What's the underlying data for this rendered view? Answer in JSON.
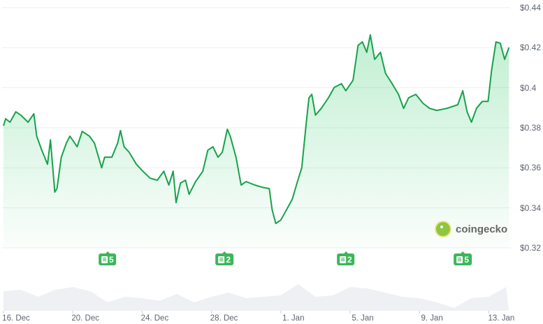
{
  "chart_data": {
    "type": "area",
    "title": "",
    "xlabel": "",
    "ylabel": "",
    "ylim": [
      0.32,
      0.44
    ],
    "y_ticks": [
      "$0.44",
      "$0.42",
      "$0.4",
      "$0.38",
      "$0.36",
      "$0.34",
      "$0.32"
    ],
    "y_tick_values": [
      0.44,
      0.42,
      0.4,
      0.38,
      0.36,
      0.34,
      0.32
    ],
    "x_ticks": [
      "16. Dec",
      "20. Dec",
      "24. Dec",
      "28. Dec",
      "1. Jan",
      "5. Jan",
      "9. Jan",
      "13. Jan"
    ],
    "x_tick_dates": [
      "16 Dec 00:00",
      "20 Dec 00:00",
      "24 Dec 00:00",
      "28 Dec 00:00",
      "1 Jan 00:00",
      "5 Jan 00:00",
      "9 Jan 00:00",
      "13 Jan 00:00"
    ],
    "grid": true,
    "line_color": "#16a34a",
    "fill_color": "#22c55e",
    "series": [
      {
        "x": [
          "16 Dec 00:00",
          "16 Dec 03:00",
          "16 Dec 09:00",
          "16 Dec 17:00",
          "17 Dec 00:00",
          "17 Dec 10:00",
          "17 Dec 18:00",
          "17 Dec 22:00",
          "18 Dec 05:00",
          "18 Dec 13:00",
          "18 Dec 17:00",
          "18 Dec 23:00",
          "19 Dec 02:00",
          "19 Dec 08:00",
          "19 Dec 15:00",
          "19 Dec 20:00",
          "20 Dec 06:00",
          "20 Dec 13:00",
          "20 Dec 23:00",
          "21 Dec 06:00",
          "21 Dec 16:00",
          "21 Dec 20:00",
          "22 Dec 06:00",
          "22 Dec 14:00",
          "22 Dec 18:00",
          "22 Dec 23:00",
          "23 Dec 06:00",
          "23 Dec 16:00",
          "24 Dec 01:00",
          "24 Dec 11:00",
          "24 Dec 21:00",
          "25 Dec 06:00",
          "25 Dec 13:00",
          "25 Dec 19:00",
          "25 Dec 23:00",
          "26 Dec 05:00",
          "26 Dec 12:00",
          "26 Dec 17:00",
          "27 Dec 02:00",
          "27 Dec 12:00",
          "27 Dec 19:00",
          "28 Dec 02:00",
          "28 Dec 09:00",
          "28 Dec 15:00",
          "28 Dec 22:00",
          "29 Dec 02:00",
          "29 Dec 10:00",
          "29 Dec 17:00",
          "30 Dec 00:00",
          "30 Dec 12:00",
          "30 Dec 22:00",
          "31 Dec 08:00",
          "31 Dec 12:00",
          "31 Dec 17:00",
          "1 Jan 00:00",
          "1 Jan 08:00",
          "1 Jan 16:00",
          "1 Jan 23:00",
          "2 Jan 05:00",
          "2 Jan 11:00",
          "2 Jan 15:00",
          "2 Jan 19:00",
          "3 Jan 00:00",
          "3 Jan 08:00",
          "3 Jan 18:00",
          "4 Jan 02:00",
          "4 Jan 12:00",
          "4 Jan 18:00",
          "5 Jan 04:00",
          "5 Jan 11:00",
          "5 Jan 17:00",
          "5 Jan 23:00",
          "6 Jan 04:00",
          "6 Jan 10:00",
          "6 Jan 18:00",
          "7 Jan 01:00",
          "7 Jan 09:00",
          "7 Jan 19:00",
          "8 Jan 02:00",
          "8 Jan 09:00",
          "8 Jan 19:00",
          "9 Jan 05:00",
          "9 Jan 14:00",
          "10 Jan 00:00",
          "10 Jan 14:00",
          "11 Jan 05:00",
          "11 Jan 12:00",
          "11 Jan 18:00",
          "12 Jan 00:00",
          "12 Jan 07:00",
          "12 Jan 15:00",
          "12 Jan 23:00",
          "13 Jan 04:00",
          "13 Jan 10:00",
          "13 Jan 16:00",
          "13 Jan 22:00",
          "14 Jan 04:00"
        ],
        "y": [
          0.381,
          0.3845,
          0.3828,
          0.388,
          0.3863,
          0.3828,
          0.387,
          0.3758,
          0.3688,
          0.3618,
          0.374,
          0.3479,
          0.3496,
          0.3653,
          0.3723,
          0.3758,
          0.3705,
          0.3782,
          0.3758,
          0.3723,
          0.36,
          0.3653,
          0.3653,
          0.3723,
          0.3786,
          0.3705,
          0.3678,
          0.3618,
          0.3583,
          0.3548,
          0.3538,
          0.3583,
          0.3514,
          0.3583,
          0.3426,
          0.3524,
          0.3538,
          0.3468,
          0.3531,
          0.3583,
          0.3688,
          0.3705,
          0.3653,
          0.3678,
          0.3793,
          0.3758,
          0.3653,
          0.3514,
          0.3531,
          0.3514,
          0.3503,
          0.3496,
          0.3391,
          0.3322,
          0.3339,
          0.3391,
          0.3444,
          0.3531,
          0.36,
          0.3817,
          0.395,
          0.3967,
          0.3863,
          0.3897,
          0.395,
          0.4002,
          0.402,
          0.3985,
          0.4037,
          0.4212,
          0.4229,
          0.4177,
          0.4264,
          0.4142,
          0.4177,
          0.4072,
          0.4027,
          0.3967,
          0.3897,
          0.395,
          0.3967,
          0.3922,
          0.3897,
          0.3887,
          0.3897,
          0.3915,
          0.3985,
          0.388,
          0.3828,
          0.3897,
          0.3932,
          0.3932,
          0.4089,
          0.4229,
          0.4222,
          0.4142,
          0.4201
        ]
      }
    ],
    "volume": {
      "color": "#eef0f3",
      "x": [
        "16 Dec 00:00",
        "17 Dec 00:00",
        "18 Dec 00:00",
        "19 Dec 00:00",
        "20 Dec 00:00",
        "21 Dec 00:00",
        "22 Dec 00:00",
        "23 Dec 00:00",
        "24 Dec 00:00",
        "25 Dec 00:00",
        "26 Dec 00:00",
        "27 Dec 00:00",
        "28 Dec 00:00",
        "29 Dec 00:00",
        "30 Dec 00:00",
        "31 Dec 00:00",
        "1 Jan 00:00",
        "2 Jan 00:00",
        "3 Jan 00:00",
        "4 Jan 00:00",
        "5 Jan 00:00",
        "6 Jan 00:00",
        "7 Jan 00:00",
        "8 Jan 00:00",
        "9 Jan 00:00",
        "10 Jan 00:00",
        "11 Jan 00:00",
        "12 Jan 00:00",
        "13 Jan 00:00",
        "14 Jan 00:00"
      ],
      "relative": [
        0.7,
        0.75,
        0.5,
        0.75,
        0.85,
        0.7,
        0.3,
        0.5,
        0.45,
        0.35,
        0.6,
        0.3,
        0.5,
        0.65,
        0.45,
        0.5,
        0.55,
        0.95,
        0.5,
        0.55,
        0.85,
        0.8,
        0.65,
        0.5,
        0.45,
        0.3,
        0.1,
        0.45,
        0.5,
        0.85
      ]
    },
    "annotations": [
      {
        "date": "22 Dec 00:00",
        "label": "5",
        "icon": "news-icon"
      },
      {
        "date": "28 Dec 18:00",
        "label": "2",
        "icon": "news-icon"
      },
      {
        "date": "4 Jan 18:00",
        "label": "2",
        "icon": "news-icon"
      },
      {
        "date": "11 Jan 12:00",
        "label": "5",
        "icon": "news-icon"
      }
    ]
  },
  "watermark": "coingecko"
}
